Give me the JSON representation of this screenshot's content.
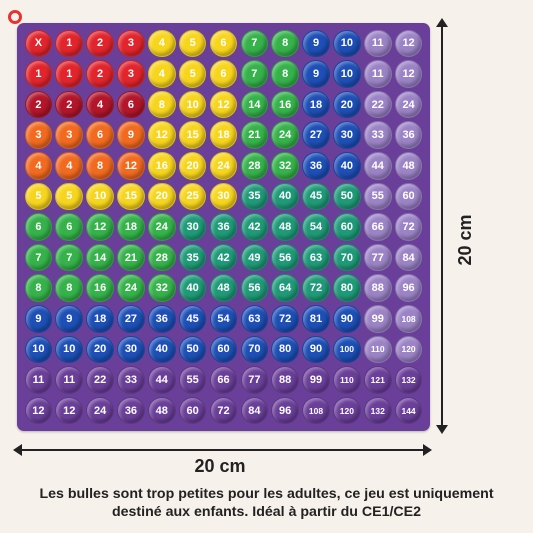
{
  "board": {
    "corner_label": "X",
    "header": [
      1,
      2,
      3,
      4,
      5,
      6,
      7,
      8,
      9,
      10,
      11,
      12
    ],
    "rows": [
      [
        1,
        1,
        2,
        3,
        4,
        5,
        6,
        7,
        8,
        9,
        10,
        11,
        12
      ],
      [
        2,
        2,
        4,
        6,
        8,
        10,
        12,
        14,
        16,
        18,
        20,
        22,
        24
      ],
      [
        3,
        3,
        6,
        9,
        12,
        15,
        18,
        21,
        24,
        27,
        30,
        33,
        36
      ],
      [
        4,
        4,
        8,
        12,
        16,
        20,
        24,
        28,
        32,
        36,
        40,
        44,
        48
      ],
      [
        5,
        5,
        10,
        15,
        20,
        25,
        30,
        35,
        40,
        45,
        50,
        55,
        60
      ],
      [
        6,
        6,
        12,
        18,
        24,
        30,
        36,
        42,
        48,
        54,
        60,
        66,
        72
      ],
      [
        7,
        7,
        14,
        21,
        28,
        35,
        42,
        49,
        56,
        63,
        70,
        77,
        84
      ],
      [
        8,
        8,
        16,
        24,
        32,
        40,
        48,
        56,
        64,
        72,
        80,
        88,
        96
      ],
      [
        9,
        9,
        18,
        27,
        36,
        45,
        54,
        63,
        72,
        81,
        90,
        99,
        108
      ],
      [
        10,
        10,
        20,
        30,
        40,
        50,
        60,
        70,
        80,
        90,
        100,
        110,
        120
      ],
      [
        11,
        11,
        22,
        33,
        44,
        55,
        66,
        77,
        88,
        99,
        110,
        121,
        132
      ],
      [
        12,
        12,
        24,
        36,
        48,
        60,
        72,
        84,
        96,
        108,
        120,
        132,
        144
      ]
    ],
    "colors": {
      "red": "#e2252c",
      "darkred": "#b3162a",
      "orange": "#f26a1f",
      "yellow": "#f7d51c",
      "green": "#35b24a",
      "teal": "#1f9a78",
      "blue": "#1d4fb6",
      "navy": "#1e3a9c",
      "purple": "#6a3f99",
      "lavender": "#9b83c6"
    }
  },
  "dimensions": {
    "width_label": "20 cm",
    "height_label": "20 cm"
  },
  "caption": {
    "line1": "Les bulles sont trop petites pour les adultes, ce jeu est uniquement",
    "line2": "destiné aux enfants. Idéal à partir du CE1/CE2"
  }
}
